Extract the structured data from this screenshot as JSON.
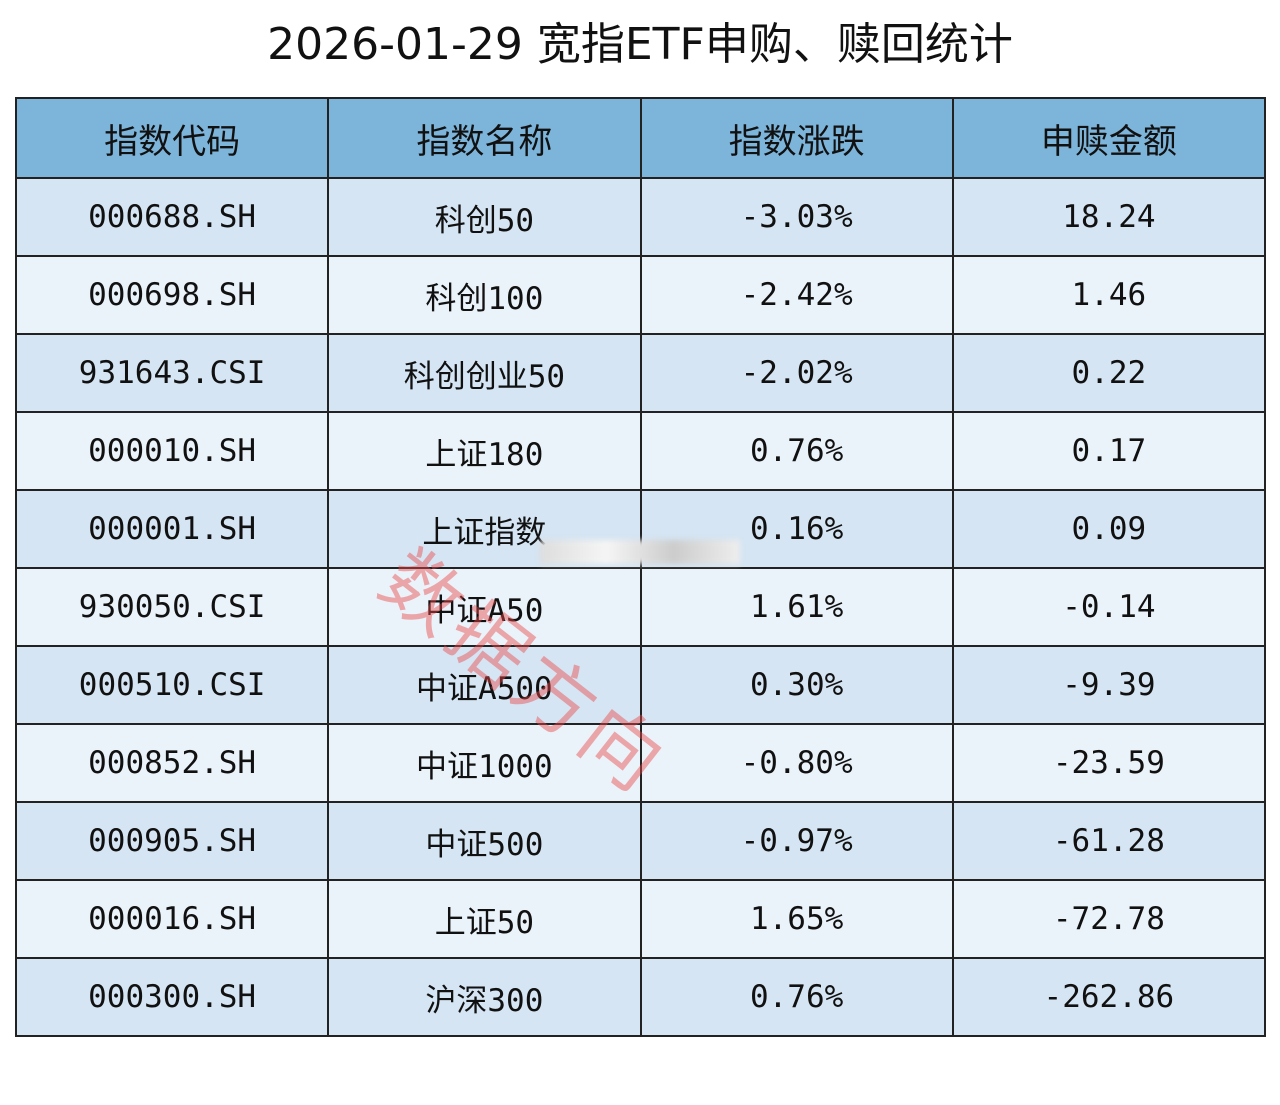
{
  "header": {
    "title": "2026-01-29 宽指ETF申购、赎回统计"
  },
  "table": {
    "columns": [
      "指数代码",
      "指数名称",
      "指数涨跌",
      "申赎金额"
    ],
    "rows": [
      [
        "000688.SH",
        "科创50",
        "-3.03%",
        "18.24"
      ],
      [
        "000698.SH",
        "科创100",
        "-2.42%",
        "1.46"
      ],
      [
        "931643.CSI",
        "科创创业50",
        "-2.02%",
        "0.22"
      ],
      [
        "000010.SH",
        "上证180",
        "0.76%",
        "0.17"
      ],
      [
        "000001.SH",
        "上证指数",
        "0.16%",
        "0.09"
      ],
      [
        "930050.CSI",
        "中证A50",
        "1.61%",
        "-0.14"
      ],
      [
        "000510.CSI",
        "中证A500",
        "0.30%",
        "-9.39"
      ],
      [
        "000852.SH",
        "中证1000",
        "-0.80%",
        "-23.59"
      ],
      [
        "000905.SH",
        "中证500",
        "-0.97%",
        "-61.28"
      ],
      [
        "000016.SH",
        "上证50",
        "1.65%",
        "-72.78"
      ],
      [
        "000300.SH",
        "沪深300",
        "0.76%",
        "-262.86"
      ]
    ]
  },
  "watermark": "数据方向"
}
